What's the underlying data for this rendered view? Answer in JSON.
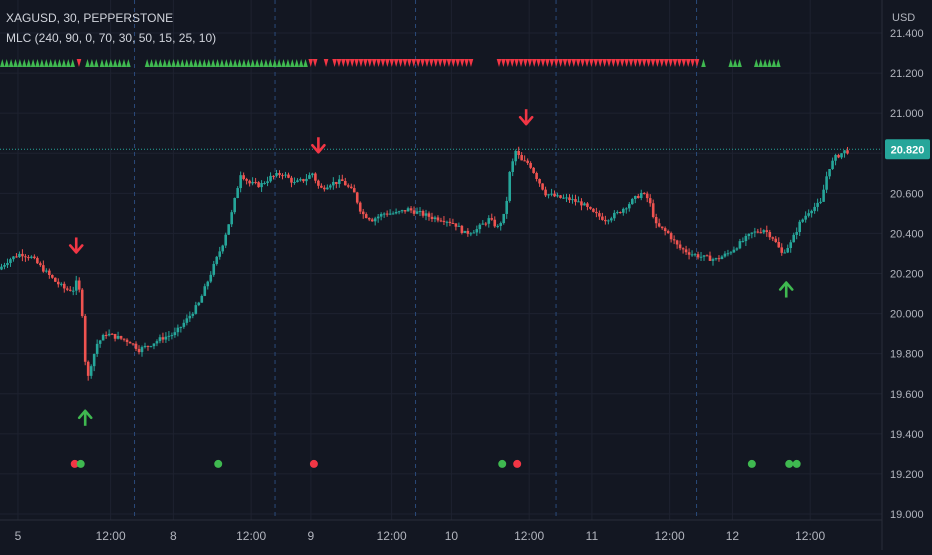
{
  "header": {
    "symbol_line": "XAGUSD, 30, PEPPERSTONE",
    "indicator_line": "MLC (240, 90, 0, 70, 30, 50, 15, 25, 10)",
    "currency": "USD"
  },
  "colors": {
    "background": "#131722",
    "grid": "#1e2230",
    "up": "#26a69a",
    "down": "#ef5350",
    "signal_up": "#3fb950",
    "signal_down": "#f23645",
    "session_line": "#2a4a7a",
    "price_line": "#26a69a",
    "axis_text": "#b2b5be"
  },
  "chart_data": {
    "type": "candlestick",
    "y_axis": {
      "ticks": [
        "21.400",
        "21.200",
        "21.000",
        "20.800",
        "20.600",
        "20.400",
        "20.200",
        "20.000",
        "19.800",
        "19.600",
        "19.400",
        "19.200",
        "19.000"
      ],
      "ylim": [
        19.0,
        21.45
      ]
    },
    "x_axis": {
      "ticks": [
        "5",
        "12:00",
        "8",
        "12:00",
        "9",
        "12:00",
        "10",
        "12:00",
        "11",
        "12:00",
        "12",
        "12:00"
      ]
    },
    "last_price": "20.820",
    "price_path": [
      [
        0,
        20.22
      ],
      [
        0.7,
        20.27
      ],
      [
        1.5,
        20.3
      ],
      [
        2.2,
        20.28
      ],
      [
        3.0,
        20.22
      ],
      [
        3.8,
        20.16
      ],
      [
        4.5,
        20.12
      ],
      [
        5.0,
        20.12
      ],
      [
        5.3,
        20.17
      ],
      [
        5.6,
        20.0
      ],
      [
        5.9,
        19.65
      ],
      [
        6.2,
        19.75
      ],
      [
        6.6,
        19.85
      ],
      [
        7.2,
        19.9
      ],
      [
        8.0,
        19.88
      ],
      [
        8.8,
        19.86
      ],
      [
        9.4,
        19.82
      ],
      [
        10.0,
        19.84
      ],
      [
        11.0,
        19.88
      ],
      [
        11.8,
        19.9
      ],
      [
        12.6,
        19.97
      ],
      [
        13.4,
        20.05
      ],
      [
        14.2,
        20.2
      ],
      [
        15.0,
        20.35
      ],
      [
        15.6,
        20.5
      ],
      [
        16.2,
        20.7
      ],
      [
        16.8,
        20.65
      ],
      [
        17.5,
        20.64
      ],
      [
        18.2,
        20.68
      ],
      [
        19.0,
        20.7
      ],
      [
        19.8,
        20.65
      ],
      [
        20.5,
        20.67
      ],
      [
        21.0,
        20.7
      ],
      [
        21.5,
        20.62
      ],
      [
        22.2,
        20.65
      ],
      [
        23.0,
        20.66
      ],
      [
        23.8,
        20.6
      ],
      [
        24.3,
        20.5
      ],
      [
        25.0,
        20.47
      ],
      [
        25.8,
        20.5
      ],
      [
        26.6,
        20.5
      ],
      [
        27.4,
        20.52
      ],
      [
        28.2,
        20.5
      ],
      [
        29.0,
        20.48
      ],
      [
        29.8,
        20.47
      ],
      [
        30.5,
        20.45
      ],
      [
        31.2,
        20.4
      ],
      [
        32.0,
        20.42
      ],
      [
        32.8,
        20.47
      ],
      [
        33.4,
        20.43
      ],
      [
        33.9,
        20.5
      ],
      [
        34.2,
        20.7
      ],
      [
        34.6,
        20.81
      ],
      [
        35.0,
        20.76
      ],
      [
        35.5,
        20.75
      ],
      [
        36.0,
        20.68
      ],
      [
        36.6,
        20.6
      ],
      [
        37.4,
        20.58
      ],
      [
        38.2,
        20.57
      ],
      [
        39.0,
        20.55
      ],
      [
        39.8,
        20.5
      ],
      [
        40.6,
        20.47
      ],
      [
        41.4,
        20.5
      ],
      [
        42.2,
        20.55
      ],
      [
        43.0,
        20.6
      ],
      [
        43.5,
        20.57
      ],
      [
        44.0,
        20.44
      ],
      [
        44.8,
        20.4
      ],
      [
        45.5,
        20.33
      ],
      [
        46.3,
        20.3
      ],
      [
        47.2,
        20.28
      ],
      [
        48.0,
        20.27
      ],
      [
        48.8,
        20.3
      ],
      [
        49.6,
        20.35
      ],
      [
        50.4,
        20.4
      ],
      [
        51.2,
        20.42
      ],
      [
        51.8,
        20.38
      ],
      [
        52.4,
        20.3
      ],
      [
        53.0,
        20.35
      ],
      [
        53.6,
        20.45
      ],
      [
        54.3,
        20.52
      ],
      [
        55.0,
        20.55
      ],
      [
        55.5,
        20.72
      ],
      [
        56.0,
        20.78
      ],
      [
        56.6,
        20.81
      ]
    ],
    "top_markers": [
      {
        "from": 0.0,
        "to": 0.085,
        "dir": "up"
      },
      {
        "from": 0.09,
        "to": 0.095,
        "dir": "down"
      },
      {
        "from": 0.1,
        "to": 0.115,
        "dir": "up"
      },
      {
        "from": 0.117,
        "to": 0.15,
        "dir": "up"
      },
      {
        "from": 0.17,
        "to": 0.36,
        "dir": "up"
      },
      {
        "from": 0.362,
        "to": 0.372,
        "dir": "down"
      },
      {
        "from": 0.38,
        "to": 0.385,
        "dir": "down"
      },
      {
        "from": 0.39,
        "to": 0.555,
        "dir": "down"
      },
      {
        "from": 0.583,
        "to": 0.82,
        "dir": "down"
      },
      {
        "from": 0.823,
        "to": 0.828,
        "dir": "up"
      },
      {
        "from": 0.855,
        "to": 0.87,
        "dir": "up"
      },
      {
        "from": 0.885,
        "to": 0.915,
        "dir": "up"
      }
    ],
    "signal_arrows": [
      {
        "t": 5.1,
        "price": 20.34,
        "dir": "down"
      },
      {
        "t": 5.7,
        "price": 19.48,
        "dir": "up"
      },
      {
        "t": 21.3,
        "price": 20.84,
        "dir": "down"
      },
      {
        "t": 35.2,
        "price": 20.98,
        "dir": "down"
      },
      {
        "t": 52.6,
        "price": 20.12,
        "dir": "up"
      }
    ],
    "dots": [
      {
        "t": 5.0,
        "dir": "down"
      },
      {
        "t": 5.4,
        "dir": "up"
      },
      {
        "t": 14.6,
        "dir": "up"
      },
      {
        "t": 21.0,
        "dir": "down"
      },
      {
        "t": 33.6,
        "dir": "up"
      },
      {
        "t": 34.6,
        "dir": "down"
      },
      {
        "t": 50.3,
        "dir": "up"
      },
      {
        "t": 52.8,
        "dir": "up"
      },
      {
        "t": 53.3,
        "dir": "up"
      }
    ],
    "dot_level": 19.25,
    "t_range": [
      0,
      57.0
    ],
    "session_t": [
      9.0,
      18.4,
      27.8,
      37.2,
      46.6
    ]
  }
}
